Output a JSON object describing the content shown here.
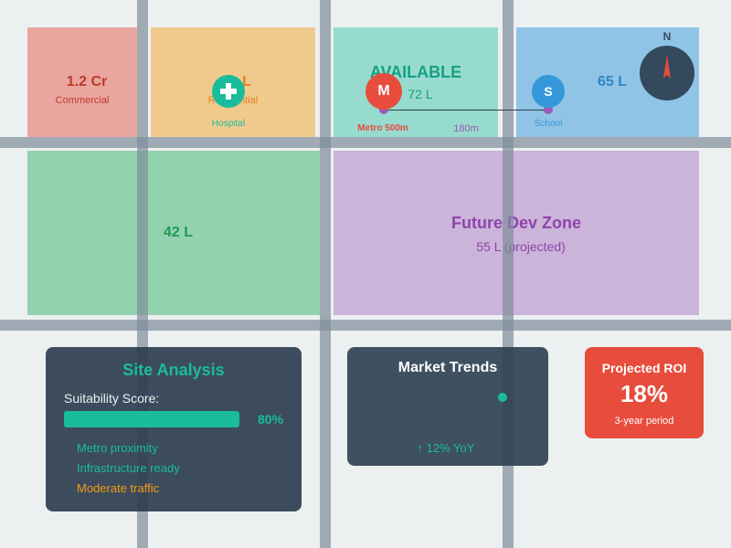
{
  "colors": {
    "background": "#ecf0f1",
    "road": "#7f8c9a",
    "commercial": "#e74c3c",
    "residential": "#f39c12",
    "available": "#1abc9c",
    "zone_blue": "#3498db",
    "green_plot": "#27ae60",
    "future_zone": "#9b59b6",
    "panel_dark": "#2c3e50",
    "accent_teal": "#1abc9c",
    "roi_red": "#e74c3c"
  },
  "plots": {
    "commercial": {
      "price": "1.2 Cr",
      "type": "Commercial"
    },
    "residential": {
      "price": "L",
      "type": "Residential"
    },
    "available": {
      "status": "AVAILABLE",
      "price": "72 L"
    },
    "blue_plot": {
      "price": "65 L"
    },
    "green_plot": {
      "price": "42 L"
    },
    "future_zone": {
      "title": "Future Dev Zone",
      "price": "55 L (projected)"
    }
  },
  "landmarks": {
    "hospital": {
      "label": "Hospital",
      "icon": "medical-cross-icon"
    },
    "metro": {
      "letter": "M",
      "label": "Metro 500m"
    },
    "school": {
      "letter": "S",
      "label": "School"
    },
    "distance_label": "180m"
  },
  "compass": {
    "label": "N",
    "icon": "compass-needle-icon"
  },
  "site_analysis": {
    "title": "Site Analysis",
    "score_label": "Suitability Score:",
    "score_value": 0.8,
    "score_text": "80%",
    "factors": [
      {
        "text": "Metro proximity",
        "status": "positive"
      },
      {
        "text": "Infrastructure ready",
        "status": "positive"
      },
      {
        "text": "Moderate traffic",
        "status": "warning"
      }
    ]
  },
  "market_trends": {
    "title": "Market Trends",
    "change": "↑ 12% YoY"
  },
  "roi": {
    "title": "Projected ROI",
    "value": "18%",
    "period": "3-year period"
  }
}
